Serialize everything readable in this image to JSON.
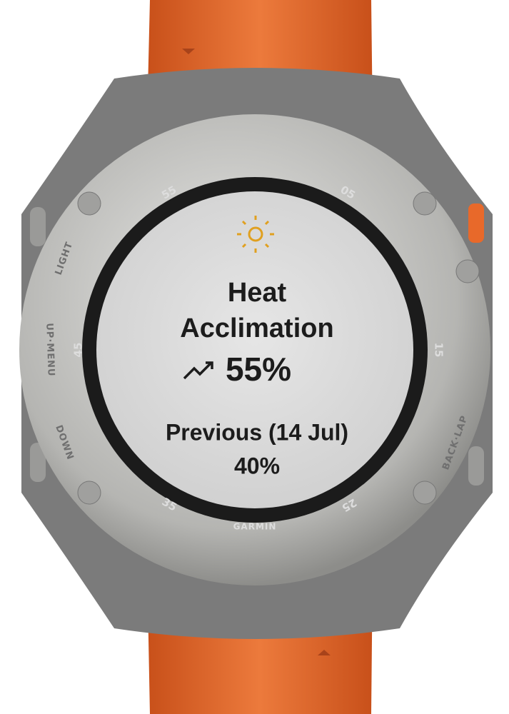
{
  "bezel": {
    "markers": [
      "55",
      "05",
      "15",
      "25",
      "35",
      "45"
    ],
    "buttons": [
      "LIGHT",
      "UP·MENU",
      "DOWN",
      "BACK·LAP"
    ],
    "brand": "GARMIN"
  },
  "screen": {
    "title": [
      "Heat",
      "Acclimation"
    ],
    "value": "55%",
    "previous_label": "Previous (14 Jul)",
    "previous_value": "40%"
  }
}
